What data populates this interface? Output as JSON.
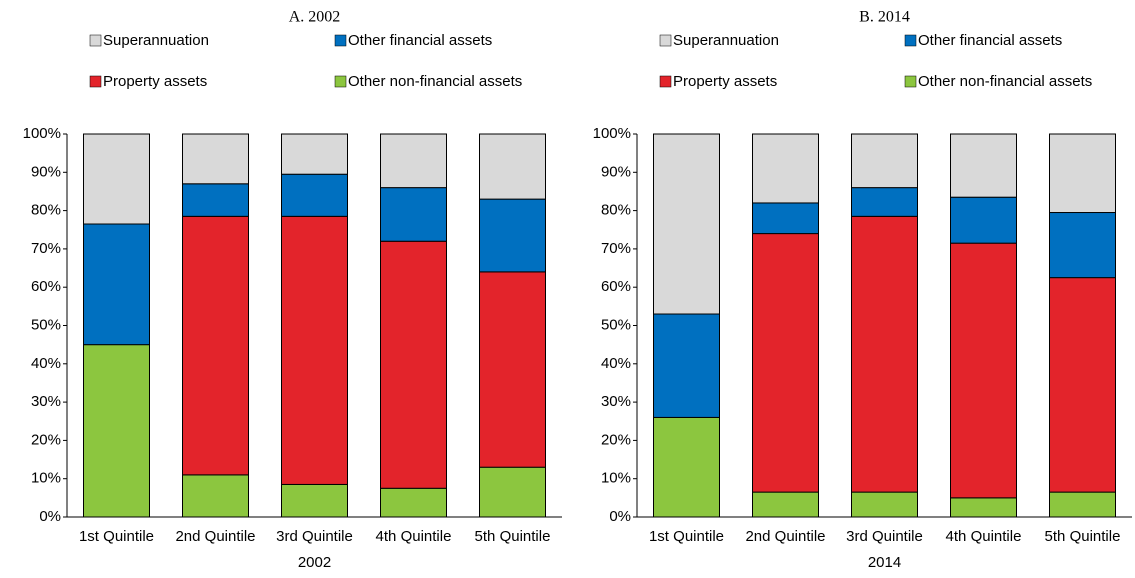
{
  "chart_data": [
    {
      "type": "stacked-bar",
      "title": "A. 2002",
      "x_label": "2002",
      "categories": [
        "1st Quintile",
        "2nd Quintile",
        "3rd Quintile",
        "4th Quintile",
        "5th Quintile"
      ],
      "series": [
        {
          "name": "Superannuation",
          "color": "#d9d9d9",
          "values": [
            23.5,
            13,
            10.5,
            14,
            17
          ]
        },
        {
          "name": "Other financial assets",
          "color": "#0070c0",
          "values": [
            31.5,
            8.5,
            11,
            14,
            19
          ]
        },
        {
          "name": "Property assets",
          "color": "#e3242b",
          "values": [
            0,
            67.5,
            70,
            64.5,
            51
          ]
        },
        {
          "name": "Other non-financial assets",
          "color": "#8cc63f",
          "values": [
            45,
            11,
            8.5,
            7.5,
            13
          ]
        }
      ],
      "ylim": [
        0,
        100
      ],
      "yticks": [
        {
          "value": 0,
          "label": "0%"
        },
        {
          "value": 10,
          "label": "10%"
        },
        {
          "value": 20,
          "label": "20%"
        },
        {
          "value": 30,
          "label": "30%"
        },
        {
          "value": 40,
          "label": "40%"
        },
        {
          "value": 50,
          "label": "50%"
        },
        {
          "value": 60,
          "label": "60%"
        },
        {
          "value": 70,
          "label": "70%"
        },
        {
          "value": 80,
          "label": "80%"
        },
        {
          "value": 90,
          "label": "90%"
        },
        {
          "value": 100,
          "label": "100%"
        }
      ]
    },
    {
      "type": "stacked-bar",
      "title": "B. 2014",
      "x_label": "2014",
      "categories": [
        "1st Quintile",
        "2nd Quintile",
        "3rd Quintile",
        "4th Quintile",
        "5th Quintile"
      ],
      "series": [
        {
          "name": "Superannuation",
          "color": "#d9d9d9",
          "values": [
            47,
            18,
            14,
            16.5,
            20.5
          ]
        },
        {
          "name": "Other financial assets",
          "color": "#0070c0",
          "values": [
            27,
            8,
            7.5,
            12,
            17
          ]
        },
        {
          "name": "Property assets",
          "color": "#e3242b",
          "values": [
            0,
            67.5,
            72,
            66.5,
            56
          ]
        },
        {
          "name": "Other non-financial assets",
          "color": "#8cc63f",
          "values": [
            26,
            6.5,
            6.5,
            5,
            6.5
          ]
        }
      ],
      "ylim": [
        0,
        100
      ],
      "yticks": [
        {
          "value": 0,
          "label": "0%"
        },
        {
          "value": 10,
          "label": "10%"
        },
        {
          "value": 20,
          "label": "20%"
        },
        {
          "value": 30,
          "label": "30%"
        },
        {
          "value": 40,
          "label": "40%"
        },
        {
          "value": 50,
          "label": "50%"
        },
        {
          "value": 60,
          "label": "60%"
        },
        {
          "value": 70,
          "label": "70%"
        },
        {
          "value": 80,
          "label": "80%"
        },
        {
          "value": 90,
          "label": "90%"
        },
        {
          "value": 100,
          "label": "100%"
        }
      ]
    }
  ]
}
